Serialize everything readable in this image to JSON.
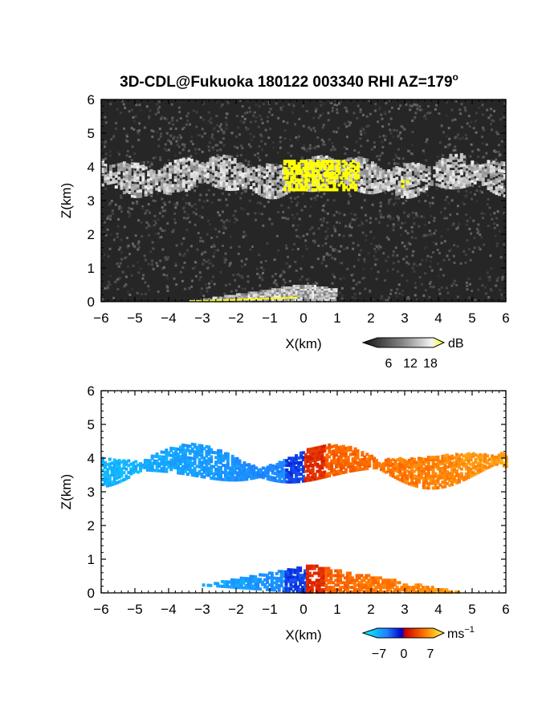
{
  "figure": {
    "title": "3D-CDL@Fukuoka 180122 003340 RHI AZ=179",
    "title_superscript": "o"
  },
  "colors": {
    "reflectivity_bg": "#262626",
    "velocity_bg": "#ffffff",
    "highlight": "#ffff00",
    "axis": "#000000"
  },
  "chart_data": [
    {
      "type": "heatmap",
      "title": "",
      "xlabel": "X(km)",
      "ylabel": "Z(km)",
      "xlim": [
        -6,
        6
      ],
      "ylim": [
        0,
        6
      ],
      "xticks": [
        "−6",
        "−5",
        "−4",
        "−3",
        "−2",
        "−1",
        "0",
        "1",
        "2",
        "3",
        "4",
        "5",
        "6"
      ],
      "yticks": [
        "0",
        "1",
        "2",
        "3",
        "4",
        "5",
        "6"
      ],
      "colorbar": {
        "label": "dB",
        "ticks": [
          "6",
          "12",
          "18"
        ],
        "range": [
          0,
          21
        ]
      },
      "cloud_layer": {
        "x_range": [
          -6,
          6
        ],
        "base_km": 3.2,
        "top_km": 4.2
      },
      "strong_echo_regions": [
        {
          "x_range": [
            -0.6,
            1.6
          ],
          "z_range": [
            3.3,
            4.2
          ]
        },
        {
          "x_range": [
            2.9,
            3.1
          ],
          "z_range": [
            3.4,
            3.6
          ]
        }
      ],
      "ground_clutter": {
        "x_range": [
          -3.4,
          1.0
        ],
        "z_max_km": 0.5
      }
    },
    {
      "type": "heatmap",
      "title": "",
      "xlabel": "X(km)",
      "ylabel": "Z(km)",
      "xlim": [
        -6,
        6
      ],
      "ylim": [
        0,
        6
      ],
      "xticks": [
        "−6",
        "−5",
        "−4",
        "−3",
        "−2",
        "−1",
        "0",
        "1",
        "2",
        "3",
        "4",
        "5",
        "6"
      ],
      "yticks": [
        "0",
        "1",
        "2",
        "3",
        "4",
        "5",
        "6"
      ],
      "colorbar": {
        "label": "ms",
        "label_superscript": "−1",
        "ticks": [
          "−7",
          "0",
          "7"
        ],
        "range": [
          -9,
          9
        ]
      },
      "upper_layer": {
        "x_range": [
          -6,
          6
        ],
        "base_km": 3.0,
        "top_km": 4.5,
        "velocity_left_ms": -6,
        "velocity_right_ms": 6
      },
      "lower_layer": {
        "x_range": [
          -3.5,
          4.6
        ],
        "base_km": 0.0,
        "top_km": 0.8,
        "velocity_left_ms": -6,
        "velocity_right_ms": 6
      }
    }
  ]
}
